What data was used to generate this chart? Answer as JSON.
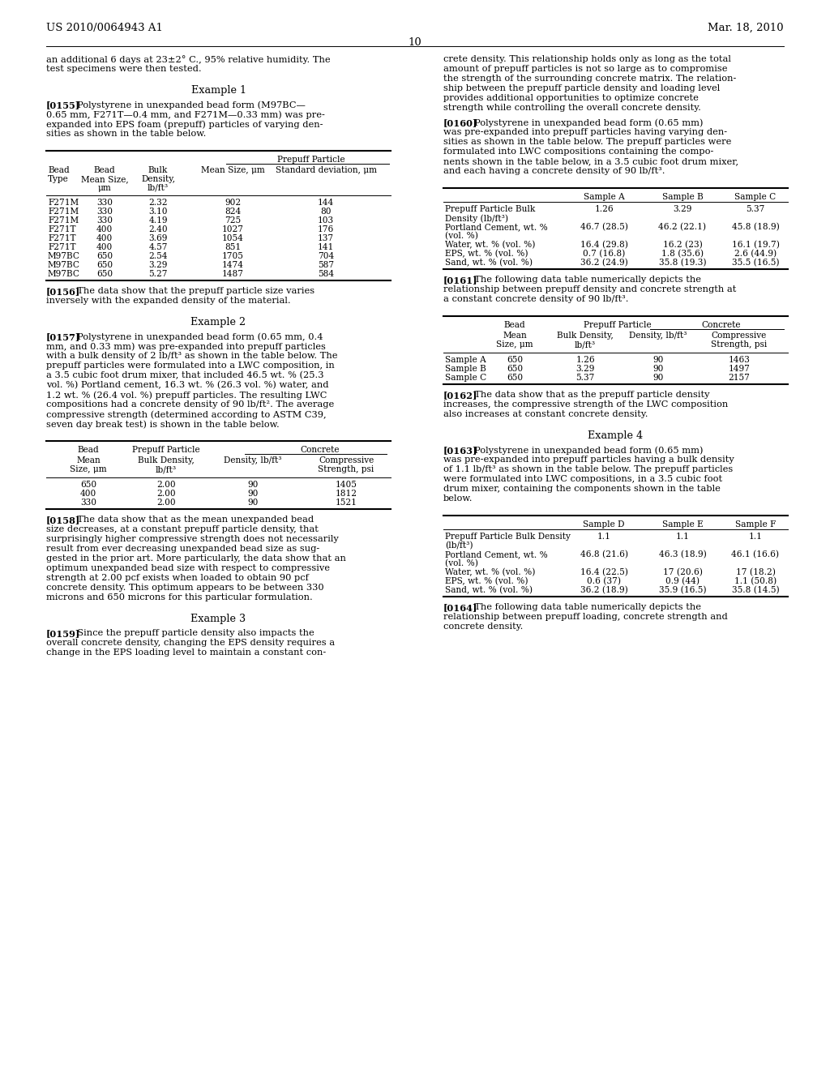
{
  "header_left": "US 2010/0064943 A1",
  "header_right": "Mar. 18, 2010",
  "page_number": "10",
  "background_color": "#ffffff",
  "left_col_paragraphs": [
    {
      "type": "body",
      "lines": [
        "an additional 6 days at 23±2° C., 95% relative humidity. The",
        "test specimens were then tested."
      ]
    },
    {
      "type": "example",
      "text": "Example 1"
    },
    {
      "type": "para",
      "bold": "[0155]",
      "lines": [
        "  Polystyrene in unexpanded bead form (M97BC—",
        "0.65 mm, F271T—0.4 mm, and F271M—0.33 mm) was pre-",
        "expanded into EPS foam (prepuff) particles of varying den-",
        "sities as shown in the table below."
      ]
    },
    {
      "type": "table",
      "id": "t1"
    },
    {
      "type": "para",
      "bold": "[0156]",
      "lines": [
        "  The data show that the prepuff particle size varies",
        "inversely with the expanded density of the material."
      ]
    },
    {
      "type": "example",
      "text": "Example 2"
    },
    {
      "type": "para",
      "bold": "[0157]",
      "lines": [
        "  Polystyrene in unexpanded bead form (0.65 mm, 0.4",
        "mm, and 0.33 mm) was pre-expanded into prepuff particles",
        "with a bulk density of 2 lb/ft³ as shown in the table below. The",
        "prepuff particles were formulated into a LWC composition, in",
        "a 3.5 cubic foot drum mixer, that included 46.5 wt. % (25.3",
        "vol. %) Portland cement, 16.3 wt. % (26.3 vol. %) water, and",
        "1.2 wt. % (26.4 vol. %) prepuff particles. The resulting LWC",
        "compositions had a concrete density of 90 lb/ft². The average",
        "compressive strength (determined according to ASTM C39,",
        "seven day break test) is shown in the table below."
      ]
    },
    {
      "type": "table",
      "id": "t2"
    },
    {
      "type": "para",
      "bold": "[0158]",
      "lines": [
        "  The data show that as the mean unexpanded bead",
        "size decreases, at a constant prepuff particle density, that",
        "surprisingly higher compressive strength does not necessarily",
        "result from ever decreasing unexpanded bead size as sug-",
        "gested in the prior art. More particularly, the data show that an",
        "optimum unexpanded bead size with respect to compressive",
        "strength at 2.00 pcf exists when loaded to obtain 90 pcf",
        "concrete density. This optimum appears to be between 330",
        "microns and 650 microns for this particular formulation."
      ]
    },
    {
      "type": "example",
      "text": "Example 3"
    },
    {
      "type": "para",
      "bold": "[0159]",
      "lines": [
        "  Since the prepuff particle density also impacts the",
        "overall concrete density, changing the EPS density requires a",
        "change in the EPS loading level to maintain a constant con-"
      ]
    }
  ],
  "right_col_paragraphs": [
    {
      "type": "body",
      "lines": [
        "crete density. This relationship holds only as long as the total",
        "amount of prepuff particles is not so large as to compromise",
        "the strength of the surrounding concrete matrix. The relation-",
        "ship between the prepuff particle density and loading level",
        "provides additional opportunities to optimize concrete",
        "strength while controlling the overall concrete density."
      ]
    },
    {
      "type": "para",
      "bold": "[0160]",
      "lines": [
        "  Polystyrene in unexpanded bead form (0.65 mm)",
        "was pre-expanded into prepuff particles having varying den-",
        "sities as shown in the table below. The prepuff particles were",
        "formulated into LWC compositions containing the compo-",
        "nents shown in the table below, in a 3.5 cubic foot drum mixer,",
        "and each having a concrete density of 90 lb/ft³."
      ]
    },
    {
      "type": "table",
      "id": "t3"
    },
    {
      "type": "para",
      "bold": "[0161]",
      "lines": [
        "  The following data table numerically depicts the",
        "relationship between prepuff density and concrete strength at",
        "a constant concrete density of 90 lb/ft³."
      ]
    },
    {
      "type": "table",
      "id": "t4"
    },
    {
      "type": "para",
      "bold": "[0162]",
      "lines": [
        "  The data show that as the prepuff particle density",
        "increases, the compressive strength of the LWC composition",
        "also increases at constant concrete density."
      ]
    },
    {
      "type": "example",
      "text": "Example 4"
    },
    {
      "type": "para",
      "bold": "[0163]",
      "lines": [
        "  Polystyrene in unexpanded bead form (0.65 mm)",
        "was pre-expanded into prepuff particles having a bulk density",
        "of 1.1 lb/ft³ as shown in the table below. The prepuff particles",
        "were formulated into LWC compositions, in a 3.5 cubic foot",
        "drum mixer, containing the components shown in the table",
        "below."
      ]
    },
    {
      "type": "table",
      "id": "t5"
    },
    {
      "type": "para",
      "bold": "[0164]",
      "lines": [
        "  The following data table numerically depicts the",
        "relationship between prepuff loading, concrete strength and",
        "concrete density."
      ]
    }
  ]
}
